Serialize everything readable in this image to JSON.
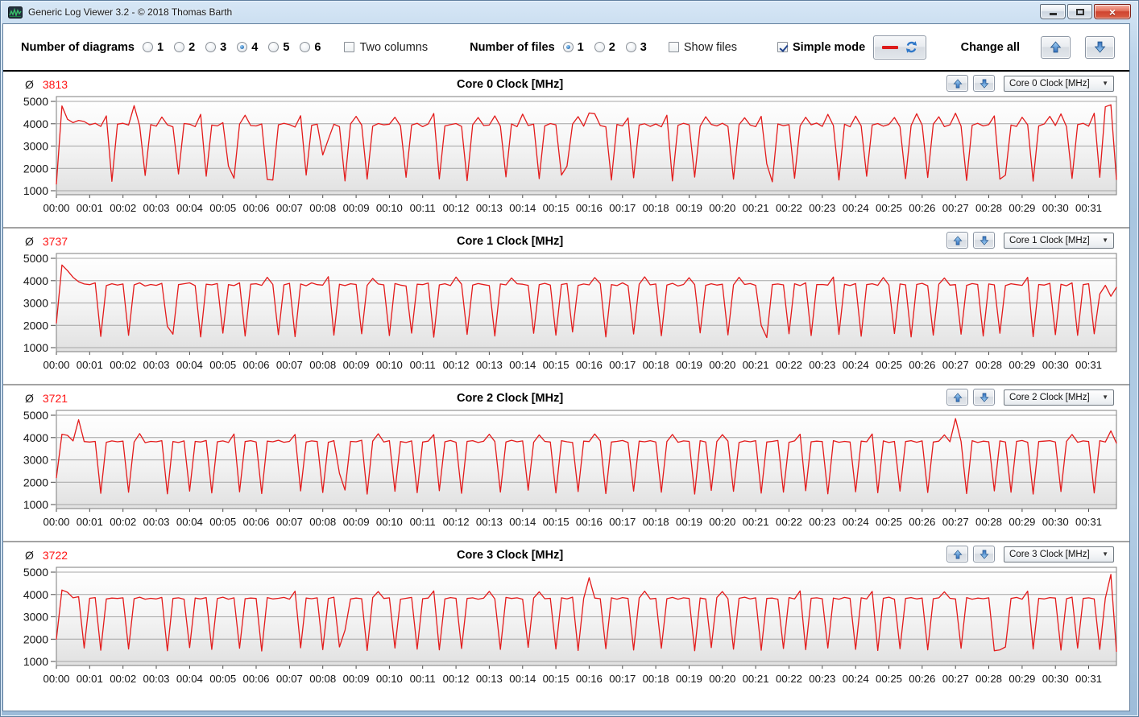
{
  "window": {
    "title": "Generic Log Viewer 3.2 - © 2018 Thomas Barth"
  },
  "icons": {
    "app_icon": "green-waveform-logo",
    "minimize": "dash",
    "maximize": "square",
    "close": "×",
    "dropdown_arrow": "▼",
    "panel_up": "blue-up-arrow",
    "panel_down": "blue-down-arrow",
    "refresh": "blue-sync-arrows",
    "line_sample": "red-dash"
  },
  "toolbar": {
    "diagrams_label": "Number of diagrams",
    "diagram_options": [
      "1",
      "2",
      "3",
      "4",
      "5",
      "6"
    ],
    "diagrams_selected": "4",
    "two_columns_label": "Two columns",
    "two_columns_checked": false,
    "files_label": "Number of files",
    "file_options": [
      "1",
      "2",
      "3"
    ],
    "files_selected": "1",
    "show_files_label": "Show files",
    "show_files_checked": false,
    "simple_mode_label": "Simple mode",
    "simple_mode_checked": true,
    "change_all_label": "Change all"
  },
  "chart_data": {
    "type": "line",
    "x_axis_unit": "mm:ss",
    "x_tick_labels": [
      "00:00",
      "00:01",
      "00:02",
      "00:03",
      "00:04",
      "00:05",
      "00:06",
      "00:07",
      "00:08",
      "00:09",
      "00:10",
      "00:11",
      "00:12",
      "00:13",
      "00:14",
      "00:15",
      "00:16",
      "00:17",
      "00:18",
      "00:19",
      "00:20",
      "00:21",
      "00:22",
      "00:23",
      "00:24",
      "00:25",
      "00:26",
      "00:27",
      "00:28",
      "00:29",
      "00:30",
      "00:31"
    ],
    "ylim": [
      1000,
      5000
    ],
    "y_ticks": [
      5000,
      4000,
      3000,
      2000,
      1000
    ],
    "sample_interval_seconds": 10,
    "grid": true,
    "line_color": "#e31b1b",
    "avg_symbol": "Ø",
    "avg_color": "#ff1414",
    "series": [
      {
        "name": "Core 0 Clock [MHz]",
        "average": 3813,
        "values": [
          1300,
          4800,
          4200,
          4050,
          4150,
          4100,
          3950,
          4020,
          3880,
          4350,
          1420,
          3980,
          4020,
          3940,
          4810,
          3900,
          1680,
          3960,
          3890,
          4300,
          3950,
          3860,
          1750,
          4010,
          3980,
          3870,
          4420,
          1650,
          3940,
          3900,
          4050,
          2100,
          1560,
          3980,
          4380,
          3920,
          3900,
          3990,
          1500,
          1480,
          3950,
          4020,
          3960,
          3850,
          4360,
          1700,
          3930,
          3980,
          2600,
          3300,
          3980,
          3870,
          1440,
          3990,
          4330,
          3940,
          1520,
          3890,
          4010,
          3950,
          3980,
          4290,
          3900,
          1600,
          3940,
          4020,
          3870,
          3990,
          4460,
          1530,
          3900,
          3960,
          4010,
          3880,
          1450,
          3950,
          4280,
          3920,
          3940,
          4350,
          3890,
          1620,
          3990,
          3870,
          4430,
          3920,
          3980,
          1540,
          3900,
          4010,
          3950,
          1700,
          2100,
          3980,
          4320,
          3890,
          4480,
          4450,
          3920,
          3860,
          1480,
          3970,
          3900,
          4260,
          1580,
          3940,
          4000,
          3880,
          3990,
          3860,
          4380,
          1440,
          3930,
          4020,
          3950,
          1610,
          3890,
          4310,
          3970,
          3900,
          4020,
          3880,
          1520,
          3960,
          4270,
          3940,
          3870,
          4330,
          2200,
          1400,
          3990,
          3910,
          3960,
          1560,
          3900,
          4290,
          3950,
          4030,
          3880,
          4420,
          3920,
          1480,
          3980,
          3860,
          4340,
          3900,
          1650,
          3940,
          4010,
          3890,
          3970,
          4280,
          3860,
          1540,
          3920,
          4450,
          3940,
          1590,
          3980,
          4310,
          3870,
          3950,
          4470,
          3890,
          1460,
          3930,
          4020,
          3900,
          3960,
          4350,
          1520,
          1700,
          3940,
          3880,
          4290,
          3950,
          1430,
          3900,
          3990,
          4330,
          3920,
          4440,
          3870,
          1550,
          3960,
          4020,
          3890,
          4470,
          1600,
          4760,
          4850,
          1500
        ]
      },
      {
        "name": "Core 1 Clock [MHz]",
        "average": 3737,
        "values": [
          2100,
          4700,
          4450,
          4150,
          3950,
          3850,
          3820,
          3900,
          1500,
          3780,
          3860,
          3800,
          3850,
          1550,
          3810,
          3900,
          3760,
          3830,
          3790,
          3880,
          1950,
          1600,
          3820,
          3860,
          3900,
          3780,
          1480,
          3840,
          3810,
          3870,
          1650,
          3820,
          3780,
          3900,
          1520,
          3840,
          3860,
          3790,
          4150,
          3830,
          1580,
          3810,
          3880,
          1490,
          3850,
          3770,
          3900,
          3820,
          3800,
          4180,
          1560,
          3840,
          3780,
          3860,
          3830,
          1620,
          3790,
          4100,
          3850,
          3810,
          1540,
          3870,
          3800,
          3760,
          1650,
          3840,
          3820,
          3890,
          1470,
          3810,
          3860,
          3780,
          4160,
          3840,
          1590,
          3800,
          3870,
          3820,
          3780,
          1520,
          3850,
          3810,
          4120,
          3860,
          3840,
          3790,
          1640,
          3820,
          3880,
          3800,
          1560,
          3830,
          3870,
          1700,
          3790,
          3850,
          3810,
          4140,
          3860,
          1480,
          3820,
          3780,
          3900,
          3770,
          1610,
          3840,
          4170,
          3810,
          3850,
          1530,
          3800,
          3880,
          3760,
          3830,
          4130,
          3820,
          1660,
          3790,
          3860,
          3800,
          3840,
          1570,
          3810,
          4150,
          3830,
          3870,
          3790,
          2000,
          1450,
          3820,
          3850,
          3810,
          1620,
          3860,
          3780,
          3900,
          1540,
          3820,
          3830,
          3800,
          4160,
          1590,
          3840,
          3780,
          3870,
          1510,
          3820,
          3860,
          3790,
          4140,
          3800,
          1630,
          3850,
          3810,
          1480,
          3830,
          3880,
          3770,
          1560,
          3840,
          4120,
          3800,
          3820,
          1600,
          3790,
          3870,
          3830,
          1520,
          3850,
          3810,
          1640,
          3780,
          3860,
          3820,
          3790,
          4150,
          1490,
          3830,
          3800,
          3880,
          1580,
          3840,
          3770,
          3900,
          1550,
          3820,
          3860,
          1620,
          3400,
          3790,
          3300,
          3700
        ]
      },
      {
        "name": "Core 2 Clock [MHz]",
        "average": 3721,
        "values": [
          2200,
          4150,
          4100,
          3850,
          4800,
          3820,
          3800,
          3830,
          1500,
          3790,
          3850,
          3810,
          3840,
          1550,
          3800,
          4180,
          3770,
          3830,
          3810,
          3860,
          1480,
          3820,
          3780,
          3850,
          1600,
          3830,
          3800,
          3870,
          1520,
          3810,
          3850,
          3780,
          4160,
          1570,
          3820,
          3860,
          3800,
          1490,
          3840,
          3810,
          3880,
          3790,
          3830,
          4140,
          1610,
          3800,
          3850,
          3820,
          1540,
          3790,
          3860,
          2400,
          1650,
          3830,
          3810,
          3880,
          1470,
          3840,
          4170,
          3800,
          3860,
          1590,
          3820,
          3780,
          3850,
          1530,
          3800,
          3840,
          4130,
          1620,
          3810,
          3870,
          3790,
          1500,
          3830,
          3860,
          3780,
          3840,
          4150,
          3820,
          1560,
          3800,
          3880,
          3810,
          3850,
          1640,
          3790,
          4120,
          3830,
          3800,
          1520,
          3860,
          3810,
          3780,
          1580,
          3840,
          3820,
          4160,
          3850,
          1490,
          3800,
          3830,
          3870,
          3780,
          1600,
          3840,
          3810,
          3860,
          3800,
          1550,
          3820,
          4140,
          3790,
          3850,
          3830,
          1470,
          3860,
          3800,
          1630,
          3820,
          4130,
          3840,
          1590,
          3780,
          3850,
          3810,
          3860,
          1510,
          3800,
          3830,
          3870,
          1560,
          3790,
          3850,
          4150,
          1620,
          3810,
          3840,
          3820,
          1480,
          3860,
          3790,
          3830,
          3800,
          1570,
          3840,
          3810,
          4160,
          1530,
          3850,
          3780,
          3830,
          1600,
          3820,
          3860,
          3790,
          3850,
          1540,
          3800,
          3840,
          4120,
          3810,
          4850,
          3830,
          1490,
          3860,
          3780,
          3840,
          3810,
          1610,
          3850,
          3800,
          1550,
          3830,
          3870,
          3790,
          1470,
          3820,
          3840,
          3860,
          3800,
          1580,
          3830,
          4140,
          3790,
          3850,
          3820,
          1520,
          3860,
          3800,
          4300,
          3750
        ]
      },
      {
        "name": "Core 3 Clock [MHz]",
        "average": 3722,
        "values": [
          2000,
          4200,
          4100,
          3850,
          3900,
          1600,
          3830,
          3860,
          1500,
          3800,
          3840,
          3820,
          3850,
          1560,
          3810,
          3880,
          3790,
          3830,
          3800,
          3870,
          1480,
          3820,
          3850,
          3790,
          1620,
          3840,
          3800,
          3860,
          1540,
          3820,
          3880,
          3790,
          3850,
          1590,
          3810,
          3840,
          3820,
          1470,
          3860,
          3800,
          3830,
          3870,
          3790,
          4150,
          1610,
          3840,
          3810,
          3850,
          1530,
          3820,
          3880,
          1650,
          2400,
          3800,
          3840,
          3810,
          1490,
          3860,
          4130,
          3820,
          3850,
          1600,
          3790,
          3830,
          3870,
          1550,
          3810,
          3840,
          4160,
          1520,
          3800,
          3860,
          3830,
          1580,
          3820,
          3850,
          3790,
          3840,
          4140,
          3800,
          1540,
          3870,
          3820,
          3850,
          3790,
          1630,
          3840,
          4120,
          3810,
          3830,
          1560,
          3850,
          3800,
          3880,
          1490,
          3820,
          4750,
          3840,
          3810,
          1570,
          3850,
          3790,
          3860,
          3820,
          1510,
          3840,
          4150,
          3800,
          3830,
          1590,
          3810,
          3870,
          3790,
          3850,
          3820,
          1480,
          3840,
          3800,
          1620,
          3860,
          4130,
          3810,
          1550,
          3830,
          3880,
          3800,
          3850,
          1500,
          3820,
          3840,
          3790,
          1580,
          3860,
          3800,
          4160,
          1530,
          3830,
          3850,
          3810,
          1600,
          3840,
          3790,
          3870,
          3820,
          1540,
          3850,
          3800,
          4140,
          1490,
          3830,
          3880,
          3790,
          1570,
          3820,
          3860,
          3800,
          3840,
          1520,
          3810,
          3850,
          4120,
          3830,
          3800,
          1590,
          3860,
          3790,
          3840,
          3810,
          3850,
          1480,
          1520,
          1650,
          3820,
          3870,
          3790,
          4150,
          1560,
          3830,
          3800,
          3860,
          3840,
          1510,
          3810,
          3880,
          1600,
          3820,
          3850,
          3800,
          1540,
          3830,
          4900,
          1450
        ]
      }
    ]
  }
}
